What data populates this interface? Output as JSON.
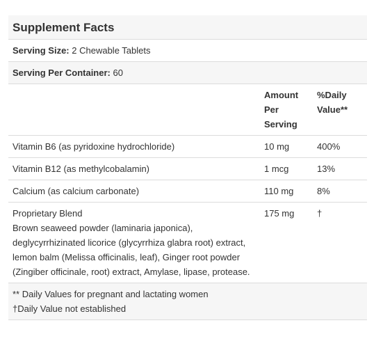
{
  "title": "Supplement Facts",
  "serving_size": {
    "label": "Serving Size:",
    "value": "2 Chewable Tablets"
  },
  "servings_per_container": {
    "label": "Serving Per Container:",
    "value": "60"
  },
  "table": {
    "columns": [
      "Amount Per Serving",
      "%Daily Value**"
    ],
    "rows": [
      {
        "name": "Vitamin B6 (as pyridoxine hydrochloride)",
        "amount": "10 mg",
        "daily_value": "400%"
      },
      {
        "name": "Vitamin B12 (as methylcobalamin)",
        "amount": "1 mcg",
        "daily_value": "13%"
      },
      {
        "name": "Calcium (as calcium carbonate)",
        "amount": "110 mg",
        "daily_value": "8%"
      },
      {
        "name": "Proprietary Blend",
        "description": "Brown seaweed powder (laminaria japonica), deglycyrrhizinated licorice (glycyrrhiza glabra root) extract, lemon balm (Melissa officinalis, leaf), Ginger root powder (Zingiber officinale, root) extract, Amylase, lipase, protease.",
        "amount": "175 mg",
        "daily_value": "†"
      }
    ]
  },
  "footnotes": [
    "** Daily Values for pregnant and lactating women",
    "†Daily Value not established"
  ]
}
